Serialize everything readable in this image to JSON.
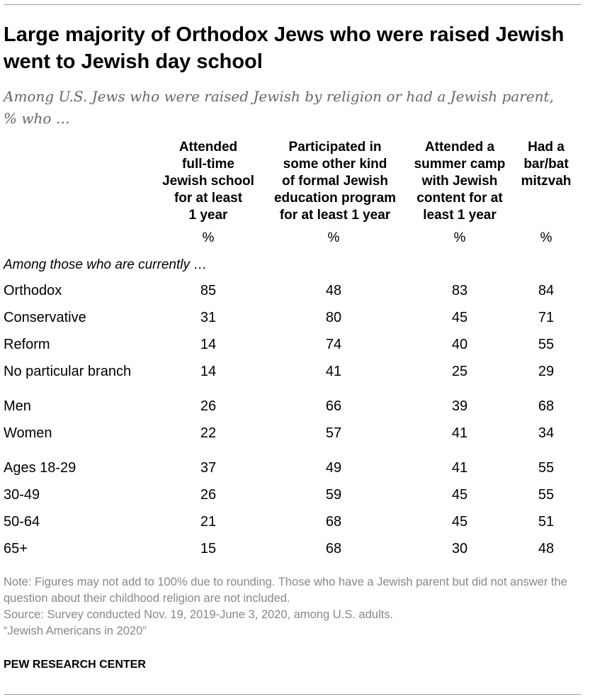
{
  "title": "Large majority of Orthodox Jews who were raised Jewish went to Jewish day school",
  "subtitle": "Among U.S. Jews who were raised Jewish by religion or had a Jewish parent, % who …",
  "section_label": "Among those who are currently …",
  "notes": [
    "Note: Figures may not add to 100% due to rounding. Those who have a Jewish parent but did not answer the question about their childhood religion are not included.",
    "Source: Survey conducted Nov. 19, 2019-June 3, 2020, among U.S. adults.",
    "“Jewish Americans in 2020”"
  ],
  "brand": "PEW RESEARCH CENTER",
  "chart_data": {
    "type": "table",
    "title": "Large majority of Orthodox Jews who were raised Jewish went to Jewish day school",
    "columns": [
      {
        "lines": [
          "Attended",
          "full-time",
          "Jewish school",
          "for at least",
          "1 year"
        ],
        "unit": "%"
      },
      {
        "lines": [
          "Participated in",
          "some other kind",
          "of formal Jewish",
          "education program",
          "for at least 1 year"
        ],
        "unit": "%"
      },
      {
        "lines": [
          "Attended a",
          "summer camp",
          "with Jewish",
          "content for at",
          "least 1 year"
        ],
        "unit": "%"
      },
      {
        "lines": [
          "Had a",
          "bar/bat",
          "mitzvah"
        ],
        "unit": "%"
      }
    ],
    "rows": [
      {
        "label": "Orthodox",
        "values": [
          85,
          48,
          83,
          84
        ]
      },
      {
        "label": "Conservative",
        "values": [
          31,
          80,
          45,
          71
        ]
      },
      {
        "label": "Reform",
        "values": [
          14,
          74,
          40,
          55
        ]
      },
      {
        "label": "No particular branch",
        "values": [
          14,
          41,
          25,
          29
        ]
      },
      {
        "label": "Men",
        "values": [
          26,
          66,
          39,
          68
        ]
      },
      {
        "label": "Women",
        "values": [
          22,
          57,
          41,
          34
        ]
      },
      {
        "label": "Ages 18-29",
        "values": [
          37,
          49,
          41,
          55
        ]
      },
      {
        "label": "30-49",
        "values": [
          26,
          59,
          45,
          55
        ]
      },
      {
        "label": "50-64",
        "values": [
          21,
          68,
          45,
          51
        ]
      },
      {
        "label": "65+",
        "values": [
          15,
          68,
          30,
          48
        ]
      }
    ]
  }
}
